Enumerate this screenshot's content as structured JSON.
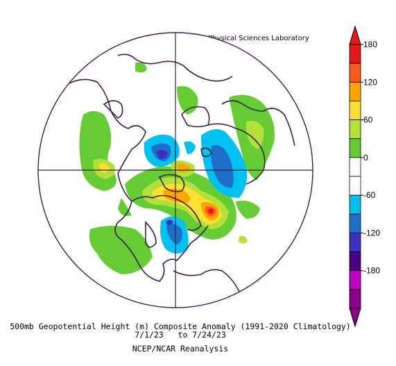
{
  "header": {
    "source": "NOAA Physical Sciences Laboratory"
  },
  "map": {
    "projection": "north-polar-stereographic",
    "field": "500mb geopotential height anomaly",
    "palette": {
      "-180": "#8b008b",
      "-150": "#c000c0",
      "-120": "#4b0082",
      "-90": "#3b2fbf",
      "-60": "#1e6ec8",
      "-30": "#00c0f0",
      "0": "#ffffff",
      "30": "#66cc33",
      "60": "#b4e03c",
      "90": "#ffe135",
      "120": "#ffa500",
      "150": "#ff5a1e",
      "180": "#e31a1c"
    },
    "features": {
      "positive_anomalies": [
        "Canada / Hudson Bay",
        "Atlantic off eastern North America",
        "Barents / Kara Sea",
        "East Asia",
        "Europe"
      ],
      "negative_anomalies": [
        "Greenland",
        "Beaufort Sea",
        "northwestern North America",
        "Scandinavia / Arctic Ocean"
      ],
      "peak_positive_label": "~+150 m",
      "peak_negative_label": "~-120 m"
    }
  },
  "colorbar": {
    "ticks": [
      "180",
      "120",
      "60",
      "0",
      "-60",
      "-120",
      "-180"
    ],
    "colors": [
      "#e31a1c",
      "#ff5a1e",
      "#ffa500",
      "#ffe135",
      "#b4e03c",
      "#66cc33",
      "#ffffff",
      "#ffffff",
      "#00c0f0",
      "#1e6ec8",
      "#3b2fbf",
      "#4b0082",
      "#c000c0",
      "#8b008b"
    ]
  },
  "caption": {
    "line1": "500mb Geopotential Height (m) Composite Anomaly (1991-2020 Climatology)",
    "line2": "7/1/23   to 7/24/23",
    "line3": "NCEP/NCAR Reanalysis"
  }
}
